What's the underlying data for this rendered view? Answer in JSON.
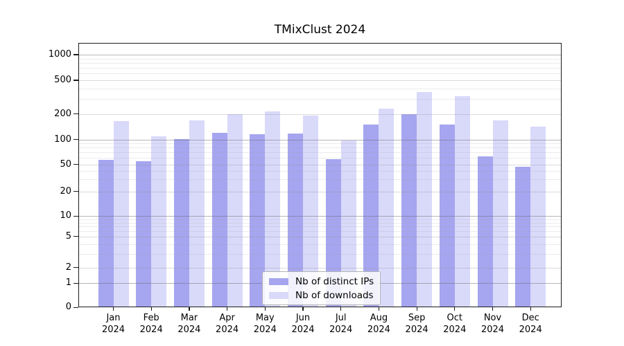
{
  "figure": {
    "title": "TMixClust 2024"
  },
  "chart_data": {
    "type": "bar",
    "title": "TMixClust 2024",
    "categories": [
      "Jan 2024",
      "Feb 2024",
      "Mar 2024",
      "Apr 2024",
      "May 2024",
      "Jun 2024",
      "Jul 2024",
      "Aug 2024",
      "Sep 2024",
      "Oct 2024",
      "Nov 2024",
      "Dec 2024"
    ],
    "x_months": [
      "Jan",
      "Feb",
      "Mar",
      "Apr",
      "May",
      "Jun",
      "Jul",
      "Aug",
      "Sep",
      "Oct",
      "Nov",
      "Dec"
    ],
    "x_year": "2024",
    "series": [
      {
        "name": "Nb of distinct IPs",
        "color": "#a5a5f0",
        "values": [
          57,
          54,
          100,
          120,
          114,
          118,
          58,
          150,
          196,
          150,
          62,
          46
        ]
      },
      {
        "name": "Nb of downloads",
        "color": "#d9d9fa",
        "values": [
          165,
          108,
          166,
          196,
          212,
          192,
          97,
          230,
          360,
          320,
          168,
          142
        ]
      }
    ],
    "xlabel": "",
    "ylabel": "",
    "yticks": [
      0,
      1,
      2,
      5,
      10,
      20,
      50,
      100,
      200,
      500,
      1000
    ],
    "ytick_labels": [
      "0",
      "1",
      "2",
      "5",
      "10",
      "20",
      "50",
      "100",
      "200",
      "500",
      "1000"
    ],
    "yscale": "log-like with zero baseline",
    "ylim": [
      0,
      1200
    ],
    "grid": true,
    "grid_over_bars": true,
    "legend_position": "lower center inside plot",
    "bar_colors": {
      "distinct_ips": "#a5a5f0",
      "downloads": "#d9d9fa"
    }
  },
  "legend": {
    "items": [
      {
        "label": "Nb of distinct IPs",
        "color": "#a5a5f0"
      },
      {
        "label": "Nb of downloads",
        "color": "#d9d9fa"
      }
    ]
  }
}
